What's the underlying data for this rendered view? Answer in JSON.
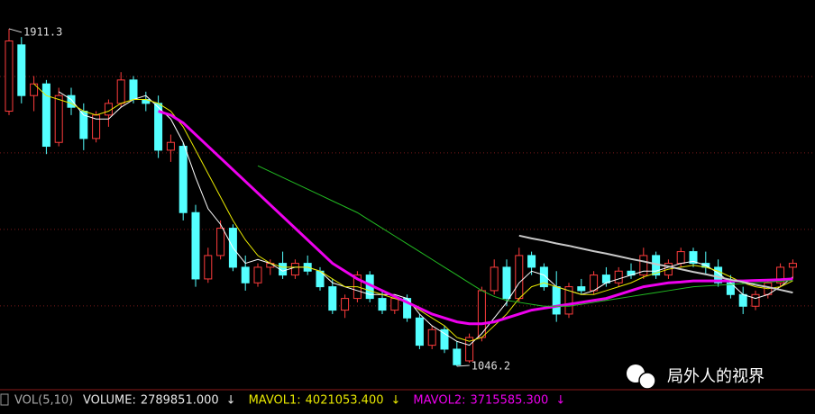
{
  "chart_data": {
    "type": "candlestick",
    "ylim": [
      993,
      1985
    ],
    "grid_levels": [
      1789,
      1593,
      1397,
      1201
    ],
    "up_color": "#ff3c3c",
    "down_color": "#54ffff",
    "open": [
      1700,
      1870,
      1740,
      1770,
      1620,
      1740,
      1700,
      1630,
      1690,
      1720,
      1780,
      1730,
      1720,
      1600,
      1610,
      1440,
      1270,
      1330,
      1400,
      1300,
      1260,
      1300,
      1310,
      1280,
      1310,
      1290,
      1250,
      1190,
      1220,
      1280,
      1220,
      1190,
      1220,
      1170,
      1100,
      1140,
      1090,
      1060,
      1120,
      1240,
      1300,
      1220,
      1330,
      1300,
      1250,
      1180,
      1250,
      1240,
      1280,
      1260,
      1290,
      1280,
      1330,
      1280,
      1310,
      1340,
      1310,
      1300,
      1260,
      1230,
      1200,
      1230,
      1260,
      1300
    ],
    "high": [
      1911.3,
      1890,
      1790,
      1780,
      1760,
      1760,
      1720,
      1700,
      1730,
      1800,
      1790,
      1750,
      1740,
      1640,
      1620,
      1460,
      1350,
      1420,
      1410,
      1330,
      1310,
      1320,
      1340,
      1320,
      1330,
      1300,
      1270,
      1230,
      1290,
      1290,
      1240,
      1230,
      1230,
      1180,
      1150,
      1150,
      1110,
      1130,
      1250,
      1320,
      1320,
      1350,
      1340,
      1310,
      1290,
      1260,
      1270,
      1290,
      1300,
      1300,
      1310,
      1350,
      1340,
      1320,
      1350,
      1350,
      1340,
      1320,
      1280,
      1250,
      1240,
      1270,
      1310,
      1320
    ],
    "low": [
      1690,
      1720,
      1700,
      1590,
      1610,
      1690,
      1600,
      1620,
      1660,
      1710,
      1720,
      1700,
      1580,
      1570,
      1420,
      1250,
      1260,
      1320,
      1290,
      1240,
      1250,
      1280,
      1270,
      1270,
      1280,
      1240,
      1180,
      1170,
      1210,
      1210,
      1180,
      1180,
      1160,
      1090,
      1090,
      1080,
      1046.2,
      1055,
      1110,
      1230,
      1200,
      1210,
      1280,
      1240,
      1160,
      1170,
      1230,
      1230,
      1250,
      1250,
      1270,
      1270,
      1270,
      1270,
      1300,
      1300,
      1280,
      1250,
      1220,
      1180,
      1190,
      1220,
      1250,
      1270
    ],
    "close": [
      1880,
      1740,
      1770,
      1610,
      1740,
      1710,
      1630,
      1690,
      1720,
      1780,
      1730,
      1720,
      1600,
      1620,
      1440,
      1270,
      1330,
      1400,
      1300,
      1260,
      1300,
      1310,
      1280,
      1310,
      1290,
      1250,
      1190,
      1220,
      1280,
      1220,
      1190,
      1220,
      1170,
      1100,
      1140,
      1090,
      1050,
      1120,
      1240,
      1300,
      1220,
      1330,
      1300,
      1250,
      1180,
      1250,
      1240,
      1280,
      1260,
      1290,
      1280,
      1330,
      1280,
      1310,
      1340,
      1310,
      1300,
      1260,
      1230,
      1200,
      1230,
      1260,
      1300,
      1310
    ],
    "series": [
      {
        "color": "#ffffff",
        "width": 1,
        "values": [
          null,
          null,
          null,
          null,
          1750,
          1730,
          1690,
          1680,
          1680,
          1710,
          1730,
          1740,
          1710,
          1680,
          1620,
          1530,
          1450,
          1410,
          1350,
          1310,
          1320,
          1310,
          1290,
          1300,
          1300,
          1290,
          1260,
          1250,
          1240,
          1230,
          1230,
          1230,
          1220,
          1180,
          1150,
          1130,
          1110,
          1100,
          1130,
          1170,
          1210,
          1260,
          1290,
          1280,
          1250,
          1240,
          1230,
          1240,
          1260,
          1270,
          1280,
          1290,
          1290,
          1300,
          1310,
          1315,
          1305,
          1285,
          1260,
          1230,
          1220,
          1230,
          1250,
          1275
        ]
      },
      {
        "color": "#e8e800",
        "width": 1,
        "values": [
          null,
          null,
          1770,
          1740,
          1730,
          1720,
          1700,
          1690,
          1700,
          1720,
          1730,
          1730,
          1720,
          1700,
          1660,
          1600,
          1540,
          1480,
          1420,
          1370,
          1330,
          1310,
          1300,
          1300,
          1300,
          1290,
          1270,
          1250,
          1250,
          1240,
          1230,
          1220,
          1210,
          1190,
          1170,
          1150,
          1120,
          1110,
          1120,
          1150,
          1180,
          1220,
          1250,
          1260,
          1250,
          1240,
          1230,
          1230,
          1240,
          1250,
          1260,
          1275,
          1285,
          1295,
          1300,
          1305,
          1300,
          1290,
          1275,
          1260,
          1250,
          1245,
          1250,
          1265
        ]
      },
      {
        "color": "#ee00ee",
        "width": 3,
        "values": [
          null,
          null,
          null,
          null,
          null,
          null,
          null,
          null,
          null,
          null,
          null,
          null,
          1700,
          1690,
          1670,
          1640,
          1610,
          1580,
          1550,
          1520,
          1490,
          1460,
          1430,
          1400,
          1370,
          1340,
          1310,
          1290,
          1270,
          1255,
          1240,
          1225,
          1210,
          1195,
          1180,
          1170,
          1160,
          1155,
          1155,
          1160,
          1170,
          1180,
          1190,
          1195,
          1200,
          1205,
          1210,
          1215,
          1220,
          1230,
          1240,
          1250,
          1255,
          1260,
          1262,
          1265,
          1265,
          1265,
          1265,
          1265,
          1266,
          1267,
          1268,
          1270
        ]
      },
      {
        "color": "#22bb22",
        "width": 1,
        "values": [
          null,
          null,
          null,
          null,
          null,
          null,
          null,
          null,
          null,
          null,
          null,
          null,
          null,
          null,
          null,
          null,
          null,
          null,
          null,
          null,
          1560,
          1545,
          1530,
          1515,
          1500,
          1485,
          1470,
          1455,
          1440,
          1420,
          1400,
          1380,
          1360,
          1340,
          1320,
          1300,
          1280,
          1260,
          1240,
          1225,
          1215,
          1210,
          1205,
          1200,
          1200,
          1200,
          1205,
          1210,
          1215,
          1220,
          1225,
          1230,
          1235,
          1240,
          1245,
          1250,
          1252,
          1254,
          1256,
          1258,
          1260,
          1262,
          1264,
          1266
        ]
      },
      {
        "color": "#c8c8c8",
        "width": 2,
        "values": [
          null,
          null,
          null,
          null,
          null,
          null,
          null,
          null,
          null,
          null,
          null,
          null,
          null,
          null,
          null,
          null,
          null,
          null,
          null,
          null,
          null,
          null,
          null,
          null,
          null,
          null,
          null,
          null,
          null,
          null,
          null,
          null,
          null,
          null,
          null,
          null,
          null,
          null,
          null,
          null,
          null,
          1381,
          1374,
          1368,
          1361,
          1355,
          1348,
          1341,
          1335,
          1328,
          1321,
          1315,
          1308,
          1302,
          1295,
          1288,
          1282,
          1275,
          1268,
          1262,
          1255,
          1249,
          1242,
          1235
        ]
      }
    ],
    "high_label": 1911.3,
    "low_label": 1046.2,
    "indicator_title": "VOL(5,10)",
    "indicators": [
      {
        "name": "VOLUME:",
        "value": 2789851,
        "label": "2789851.000",
        "arrow": "↓",
        "color": "#e8e8e8"
      },
      {
        "name": "MAVOL1:",
        "value": 4021053.4,
        "label": "4021053.400",
        "arrow": "↓",
        "color": "#e8e800"
      },
      {
        "name": "MAVOL2:",
        "value": 3715585.3,
        "label": "3715585.300",
        "arrow": "↓",
        "color": "#ee00ee"
      }
    ]
  },
  "watermark": "局外人的视界"
}
